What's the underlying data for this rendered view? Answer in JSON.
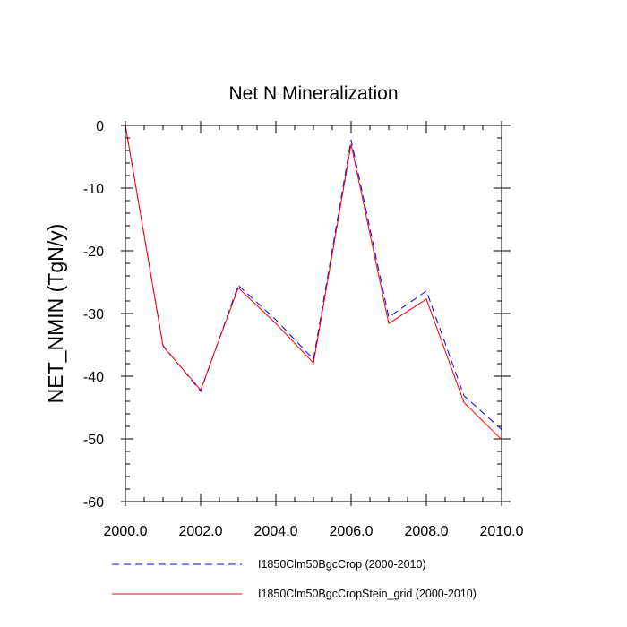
{
  "chart_data": {
    "type": "line",
    "title": "Net N Mineralization",
    "xlabel": "",
    "ylabel": "NET_NMIN  (TgN/y)",
    "xlim": [
      2000,
      2010
    ],
    "ylim": [
      -60,
      0
    ],
    "x_ticks": [
      "2000.0",
      "2002.0",
      "2004.0",
      "2006.0",
      "2008.0",
      "2010.0"
    ],
    "y_ticks": [
      "0",
      "-10",
      "-20",
      "-30",
      "-40",
      "-50",
      "-60"
    ],
    "grid": false,
    "legend_position": "bottom",
    "x": [
      2000,
      2001,
      2002,
      2003,
      2004,
      2005,
      2006,
      2007,
      2008,
      2009,
      2010
    ],
    "series": [
      {
        "name": "I1850Clm50BgcCrop (2000-2010)",
        "color": "#0000ff",
        "style": "dashed",
        "values": [
          0,
          -35.1,
          -42.4,
          -25.5,
          -31.0,
          -37.3,
          -2.3,
          -30.6,
          -26.4,
          -43.1,
          -48.5
        ]
      },
      {
        "name": "I1850Clm50BgcCropStein_grid (2000-2010)",
        "color": "#ff0000",
        "style": "solid",
        "values": [
          0,
          -35.2,
          -42.2,
          -25.9,
          -31.6,
          -37.9,
          -3.0,
          -31.6,
          -27.7,
          -44.2,
          -50.1
        ]
      }
    ]
  }
}
